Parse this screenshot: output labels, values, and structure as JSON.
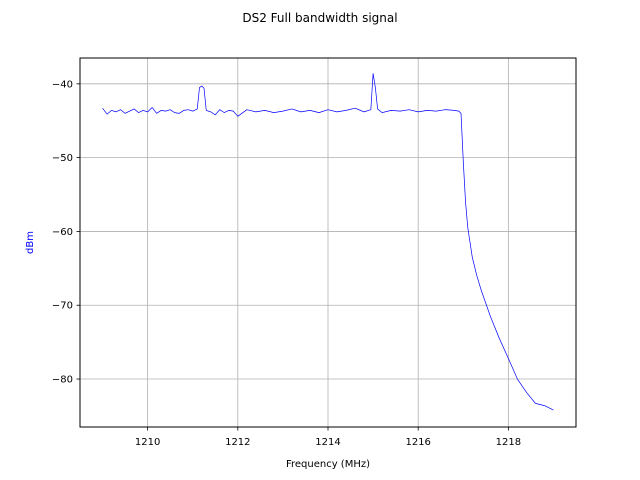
{
  "chart_data": {
    "type": "line",
    "title": "DS2 Full bandwidth signal",
    "xlabel": "Frequency (MHz)",
    "ylabel": "dBm",
    "xlim": [
      1208.5,
      1219.5
    ],
    "ylim": [
      -86.5,
      -36.5
    ],
    "xticks": [
      1210,
      1212,
      1214,
      1216,
      1218
    ],
    "xtick_labels": [
      "1210",
      "1212",
      "1214",
      "1216",
      "1218"
    ],
    "yticks": [
      -80,
      -70,
      -60,
      -50,
      -40
    ],
    "ytick_labels": [
      "−80",
      "−70",
      "−60",
      "−50",
      "−40"
    ],
    "grid": true,
    "colors": {
      "line": "#0000ff",
      "ylabel": "#0000ff",
      "grid": "#b0b0b0",
      "frame": "#000000"
    },
    "series": [
      {
        "x": [
          1209.0,
          1209.1,
          1209.2,
          1209.3,
          1209.4,
          1209.5,
          1209.6,
          1209.7,
          1209.8,
          1209.9,
          1210.0,
          1210.1,
          1210.2,
          1210.3,
          1210.4,
          1210.5,
          1210.6,
          1210.7,
          1210.8,
          1210.9,
          1211.0,
          1211.1,
          1211.15,
          1211.2,
          1211.25,
          1211.3,
          1211.4,
          1211.5,
          1211.6,
          1211.7,
          1211.8,
          1211.9,
          1212.0,
          1212.2,
          1212.4,
          1212.6,
          1212.8,
          1213.0,
          1213.2,
          1213.4,
          1213.6,
          1213.8,
          1214.0,
          1214.2,
          1214.4,
          1214.6,
          1214.8,
          1214.95,
          1215.0,
          1215.05,
          1215.1,
          1215.2,
          1215.4,
          1215.6,
          1215.8,
          1216.0,
          1216.2,
          1216.4,
          1216.6,
          1216.8,
          1216.9,
          1216.95,
          1217.0,
          1217.05,
          1217.1,
          1217.2,
          1217.3,
          1217.4,
          1217.6,
          1217.8,
          1218.0,
          1218.2,
          1218.4,
          1218.6,
          1218.8,
          1219.0
        ],
        "y": [
          -43.3,
          -44.1,
          -43.6,
          -43.8,
          -43.5,
          -44.0,
          -43.7,
          -43.4,
          -43.9,
          -43.6,
          -43.8,
          -43.2,
          -44.0,
          -43.6,
          -43.7,
          -43.5,
          -43.9,
          -44.0,
          -43.6,
          -43.5,
          -43.7,
          -43.4,
          -40.5,
          -40.3,
          -40.6,
          -43.6,
          -43.8,
          -44.2,
          -43.5,
          -43.9,
          -43.6,
          -43.7,
          -44.4,
          -43.5,
          -43.8,
          -43.6,
          -43.9,
          -43.7,
          -43.4,
          -43.8,
          -43.6,
          -43.9,
          -43.5,
          -43.8,
          -43.6,
          -43.3,
          -43.8,
          -43.5,
          -38.6,
          -40.5,
          -43.4,
          -43.9,
          -43.6,
          -43.7,
          -43.5,
          -43.8,
          -43.6,
          -43.7,
          -43.5,
          -43.6,
          -43.7,
          -44.0,
          -50.5,
          -56.0,
          -59.5,
          -63.5,
          -66.0,
          -68.0,
          -71.5,
          -74.5,
          -77.2,
          -80.0,
          -81.8,
          -83.3,
          -83.6,
          -84.2
        ]
      }
    ]
  }
}
